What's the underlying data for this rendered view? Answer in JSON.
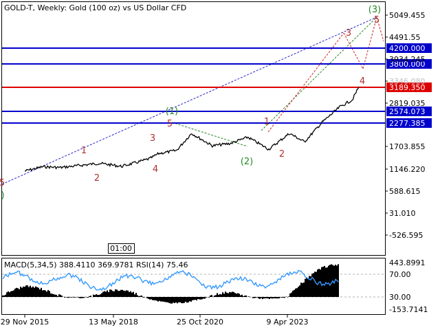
{
  "chart_data": {
    "type": "line",
    "title": "GOLD-T, Weekly:  Gold (100 oz) vs US Dollar CFD",
    "price_axis": {
      "scale": "linear",
      "ticks": [
        "5049.455",
        "4491.55",
        "3934.245",
        "3346.080",
        "2819.035",
        "1703.855",
        "1146.220",
        "588.615",
        "31.010",
        "-526.595"
      ]
    },
    "levels": [
      {
        "value": "4200.000",
        "color": "#0000cc",
        "badge": "#0000cc"
      },
      {
        "value": "3800.000",
        "color": "#0000cc",
        "badge": "#0000cc"
      },
      {
        "value": "3189.350",
        "color": "#dd0000",
        "badge": "#dd0000"
      },
      {
        "value": "2574.073",
        "color": "#0000cc",
        "badge": "#0000cc"
      },
      {
        "value": "2277.385",
        "color": "#0000cc",
        "badge": "#0000cc"
      }
    ],
    "wave_labels_green": [
      "(1)",
      "(2)",
      "(3)",
      ")"
    ],
    "wave_labels_red": [
      "1",
      "2",
      "3",
      "4",
      "5",
      "1",
      "2",
      "3",
      "4",
      "5",
      "5"
    ],
    "time_marker": "01:00",
    "x_axis_labels": [
      "29 Nov 2015",
      "13 May 2018",
      "25 Oct 2020",
      "9 Apr 2023"
    ],
    "price_series": [
      {
        "x": "2015-11-29",
        "y": 1070
      },
      {
        "x": "2016-06-01",
        "y": 1180
      },
      {
        "x": "2016-12-01",
        "y": 1160
      },
      {
        "x": "2017-06-01",
        "y": 1210
      },
      {
        "x": "2018-01-01",
        "y": 1270
      },
      {
        "x": "2018-08-15",
        "y": 1190
      },
      {
        "x": "2019-01-01",
        "y": 1280
      },
      {
        "x": "2019-06-01",
        "y": 1390
      },
      {
        "x": "2019-09-01",
        "y": 1520
      },
      {
        "x": "2020-03-01",
        "y": 1600
      },
      {
        "x": "2020-08-01",
        "y": 2040
      },
      {
        "x": "2021-03-01",
        "y": 1720
      },
      {
        "x": "2021-09-01",
        "y": 1780
      },
      {
        "x": "2022-03-01",
        "y": 1940
      },
      {
        "x": "2022-10-01",
        "y": 1630
      },
      {
        "x": "2023-05-01",
        "y": 2040
      },
      {
        "x": "2023-10-01",
        "y": 1820
      },
      {
        "x": "2024-04-01",
        "y": 2330
      },
      {
        "x": "2024-10-01",
        "y": 2730
      },
      {
        "x": "2025-02-01",
        "y": 2900
      },
      {
        "x": "2025-04-10",
        "y": 3240
      }
    ],
    "indicator": {
      "label": "MACD(5,34,5) 388.4110 369.9781 RSI(14) 75.46",
      "ticks_right": [
        "443.8991",
        "70.00",
        "30.00",
        "-153.7141"
      ]
    }
  }
}
